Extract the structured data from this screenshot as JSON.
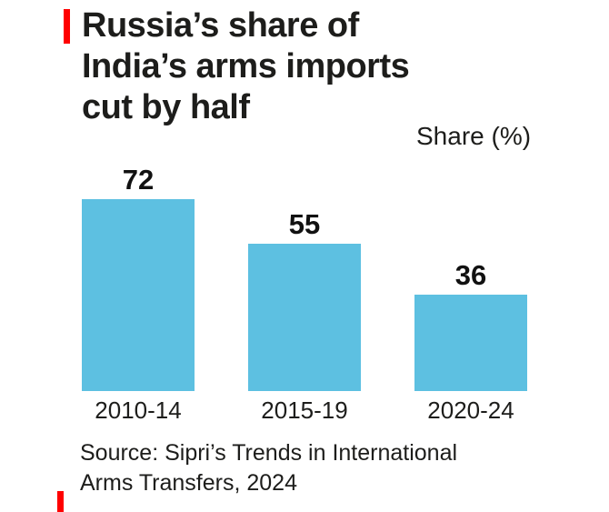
{
  "accent_color": "#ff0000",
  "bar_color": "#5dc0e1",
  "title": {
    "line1": "Russia’s share of",
    "line2": "India’s arms imports",
    "line3": "cut by half"
  },
  "unit_label": "Share (%)",
  "source": {
    "line1": "Source: Sipri’s Trends in International",
    "line2": "Arms Transfers, 2024"
  },
  "chart_data": {
    "type": "bar",
    "categories": [
      "2010-14",
      "2015-19",
      "2020-24"
    ],
    "values": [
      72,
      55,
      36
    ],
    "title": "Russia's share of India's arms imports cut by half",
    "xlabel": "",
    "ylabel": "Share (%)",
    "ylim": [
      0,
      80
    ],
    "grid": false,
    "legend": false,
    "data_labels": true,
    "bar_color": "#5dc0e1"
  }
}
